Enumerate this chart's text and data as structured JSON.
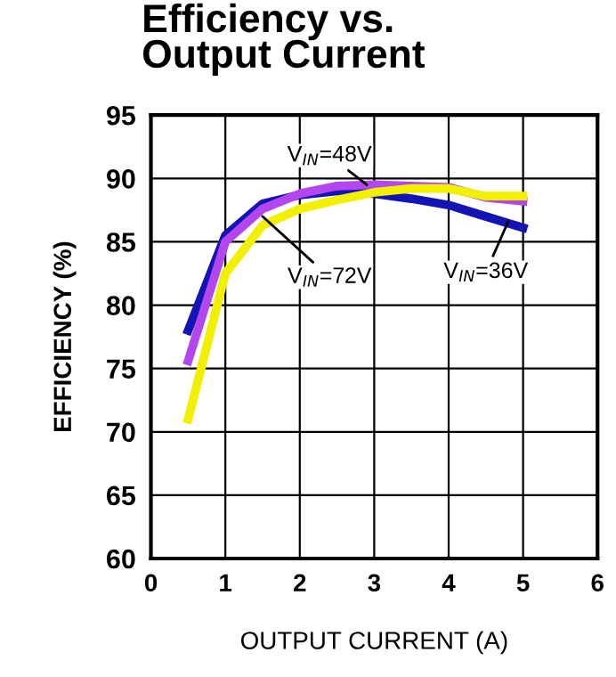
{
  "chart_data": {
    "type": "line",
    "title": "Efficiency vs.\nOutput Current",
    "xlabel": "OUTPUT CURRENT (A)",
    "ylabel": "EFFICIENCY (%)",
    "x": [
      0.5,
      1,
      1.5,
      2,
      2.5,
      3,
      3.5,
      4,
      4.5,
      5
    ],
    "series": [
      {
        "color": "#1414b4",
        "values": [
          78,
          85.5,
          88,
          88.7,
          89,
          88.8,
          88.4,
          87.9,
          87.0,
          86.1
        ]
      },
      {
        "color": "#b446f0",
        "values": [
          75.6,
          85,
          87.6,
          88.8,
          89.4,
          89.5,
          89.4,
          89.3,
          88.5,
          88.2
        ]
      },
      {
        "color": "#f0f000",
        "values": [
          71,
          82.5,
          86.3,
          87.6,
          88.3,
          88.9,
          89.2,
          89.2,
          88.6,
          88.6
        ]
      }
    ],
    "annotations": [
      {
        "text": "V$_{IN}$=48V",
        "x": 2.9,
        "y": 89.5
      },
      {
        "text": "V$_{IN}$=72V",
        "x": 1.5,
        "y": 87
      },
      {
        "text": "V$_{IN}$=36V",
        "x": 4.8,
        "y": 86.6
      }
    ],
    "xlim": [
      0,
      6
    ],
    "xticks": [
      0,
      1,
      2,
      3,
      4,
      5,
      6
    ],
    "ylim": [
      60,
      95
    ],
    "yticks": [
      60,
      65,
      70,
      75,
      80,
      85,
      90,
      95
    ],
    "grid": true,
    "legend": false,
    "marker": "none",
    "line_style": "solid"
  }
}
